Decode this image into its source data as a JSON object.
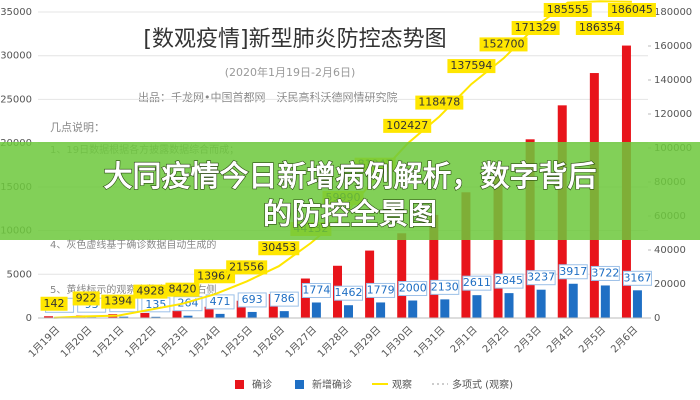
{
  "chart_data": {
    "type": "bar_line",
    "title": "[数观疫情]新型肺炎防控态势图",
    "subtitle": "(2020年1月19日-2月6日)",
    "source": "出品：千龙网•中国首都网　沃民高科沃德网情研究院",
    "notes_title": "几点说明：",
    "notes": [
      "1、19日数据根据各方披露数据综合而成；",
      "4、灰色虚线基于确诊数据自动生成的",
      "5、黄线标示的观察人数坐标轴为右侧"
    ],
    "categories": [
      "1月19日",
      "1月20日",
      "1月21日",
      "1月22日",
      "1月23日",
      "1月24日",
      "1月25日",
      "1月26日",
      "1月27日",
      "1月28日",
      "1月29日",
      "1月30日",
      "1月31日",
      "2月1日",
      "2月2日",
      "2月3日",
      "2月4日",
      "2月5日",
      "2月6日"
    ],
    "series": [
      {
        "name": "确诊",
        "color": "#e8141b",
        "values": [
          200,
          291,
          440,
          571,
          830,
          1287,
          1975,
          2744,
          4515,
          5974,
          7711,
          9692,
          11791,
          14380,
          17205,
          20438,
          24324,
          28018,
          31161
        ]
      },
      {
        "name": "新增确诊",
        "color": "#1f6fc4",
        "values": [
          79,
          93,
          150,
          135,
          264,
          471,
          693,
          786,
          1774,
          1462,
          1779,
          2000,
          2130,
          2611,
          2845,
          3237,
          3917,
          3722,
          3167
        ]
      },
      {
        "name": "观察",
        "color": "#ffe600",
        "axis": "y2",
        "values": [
          142,
          922,
          1394,
          4928,
          8420,
          13967,
          21556,
          30453,
          44132,
          59990,
          81947,
          102427,
          118478,
          137594,
          152700,
          171329,
          185555,
          186354,
          186045
        ]
      }
    ],
    "trendline_name": "多项式 (观察)",
    "ylim": [
      0,
      35000
    ],
    "yticks": [
      0,
      5000,
      10000,
      15000,
      20000,
      25000,
      30000,
      35000
    ],
    "y2lim": [
      0,
      180000
    ],
    "y2ticks": [
      0,
      20000,
      40000,
      60000,
      80000,
      100000,
      120000,
      140000,
      160000,
      180000
    ],
    "grid": true
  },
  "banner": {
    "lines": [
      "大同疫情今日新增病例解析，数字背后",
      "的防控全景图"
    ]
  }
}
